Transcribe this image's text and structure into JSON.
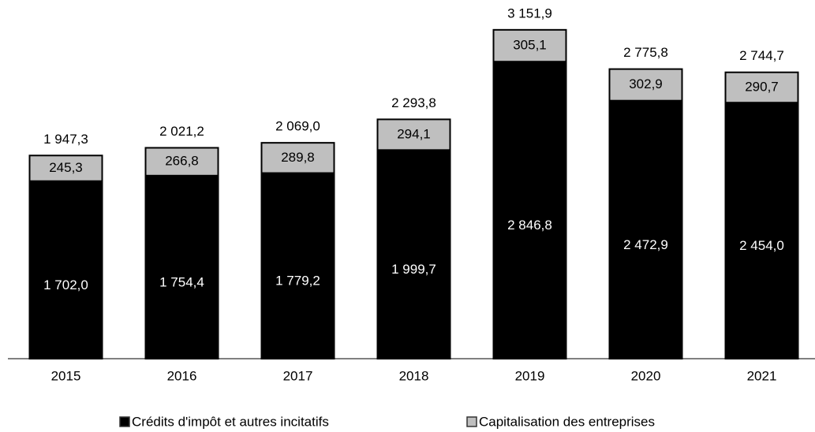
{
  "chart_data": {
    "type": "bar",
    "stacked": true,
    "categories": [
      "2015",
      "2016",
      "2017",
      "2018",
      "2019",
      "2020",
      "2021"
    ],
    "series": [
      {
        "name": "Crédits d'impôt et autres incitatifs",
        "color": "#000000",
        "values": [
          1702.0,
          1754.4,
          1779.2,
          1999.7,
          2846.8,
          2472.9,
          2454.0
        ],
        "value_labels": [
          "1 702,0",
          "1 754,4",
          "1 779,2",
          "1 999,7",
          "2 846,8",
          "2 472,9",
          "2 454,0"
        ]
      },
      {
        "name": "Capitalisation des entreprises",
        "color": "#bfbfbf",
        "values": [
          245.3,
          266.8,
          289.8,
          294.1,
          305.1,
          302.9,
          290.7
        ],
        "value_labels": [
          "245,3",
          "266,8",
          "289,8",
          "294,1",
          "305,1",
          "302,9",
          "290,7"
        ]
      }
    ],
    "totals": [
      1947.3,
      2021.2,
      2069.0,
      2293.8,
      3151.9,
      2775.8,
      2744.7
    ],
    "total_labels": [
      "1 947,3",
      "2 021,2",
      "2 069,0",
      "2 293,8",
      "3 151,9",
      "2 775,8",
      "2 744,7"
    ],
    "ylim": [
      0,
      3400
    ],
    "legend": "bottom"
  }
}
